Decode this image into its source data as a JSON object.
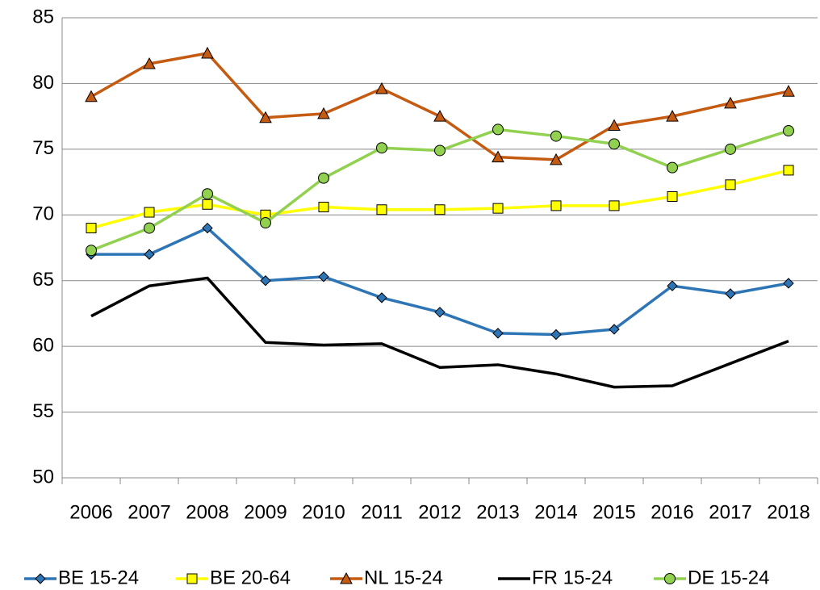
{
  "chart_data": {
    "type": "line",
    "categories": [
      "2006",
      "2007",
      "2008",
      "2009",
      "2010",
      "2011",
      "2012",
      "2013",
      "2014",
      "2015",
      "2016",
      "2017",
      "2018"
    ],
    "series": [
      {
        "name": "BE 15-24",
        "color": "#2e75b6",
        "marker": "diamond",
        "values": [
          67.0,
          67.0,
          69.0,
          65.0,
          65.3,
          63.7,
          62.6,
          61.0,
          60.9,
          61.3,
          64.6,
          64.0,
          64.8
        ]
      },
      {
        "name": "BE 20-64",
        "color": "#ffff00",
        "marker": "square",
        "values": [
          69.0,
          70.2,
          70.8,
          70.0,
          70.6,
          70.4,
          70.4,
          70.5,
          70.7,
          70.7,
          71.4,
          72.3,
          73.4
        ]
      },
      {
        "name": "NL 15-24",
        "color": "#c55a11",
        "marker": "triangle",
        "values": [
          79.0,
          81.5,
          82.3,
          77.4,
          77.7,
          79.6,
          77.5,
          74.4,
          74.2,
          76.8,
          77.5,
          78.5,
          79.4
        ]
      },
      {
        "name": "FR 15-24",
        "color": "#000000",
        "marker": "none",
        "values": [
          62.3,
          64.6,
          65.2,
          60.3,
          60.1,
          60.2,
          58.4,
          58.6,
          57.9,
          56.9,
          57.0,
          58.7,
          60.4
        ]
      },
      {
        "name": "DE 15-24",
        "color": "#92d050",
        "marker": "circle",
        "values": [
          67.3,
          69.0,
          71.6,
          69.4,
          72.8,
          75.1,
          74.9,
          76.5,
          76.0,
          75.4,
          73.6,
          75.0,
          76.4
        ]
      }
    ],
    "ylim": [
      50,
      85
    ],
    "yticks": [
      50,
      55,
      60,
      65,
      70,
      75,
      80,
      85
    ],
    "grid": true,
    "legend": "bottom"
  }
}
